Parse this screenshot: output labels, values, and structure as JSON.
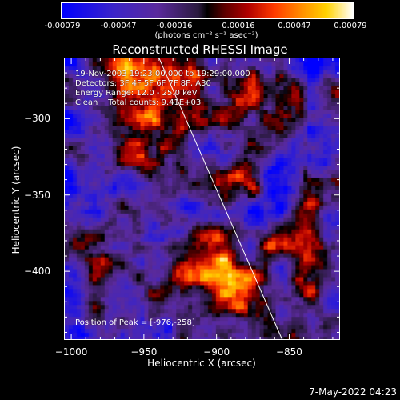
{
  "colorbar": {
    "ticks": [
      "-0.00079",
      "-0.00047",
      "-0.00016",
      "0.00016",
      "0.00047",
      "0.00079"
    ],
    "units": "(photons cm⁻² s⁻¹ asec⁻²)"
  },
  "chart_data": {
    "type": "heatmap",
    "title": "Reconstructed RHESSI Image",
    "xlabel": "Heliocentric X (arcsec)",
    "ylabel": "Heliocentric Y (arcsec)",
    "xlim": [
      -1005,
      -815
    ],
    "ylim": [
      -445,
      -260
    ],
    "xticks": [
      -1000,
      -950,
      -900,
      -850
    ],
    "yticks": [
      -300,
      -350,
      -400
    ],
    "zlim": [
      -0.00079,
      0.00079
    ],
    "annotations": {
      "date": "19-Nov-2003 19:23:00.000 to 19:29:00.000",
      "detectors": "Detectors: 3F 4F 5F 6F 7F 8F, A30",
      "energy": "Energy Range: 12.0 - 25.0 keV",
      "method": "Clean    Total counts: 9.41E+03",
      "peak": "Position of Peak = [-976,-258]"
    },
    "limb_line": {
      "x": [
        -940,
        -855
      ],
      "y": [
        -260,
        -445
      ]
    }
  },
  "footer": {
    "timestamp": "7-May-2022 04:23"
  }
}
